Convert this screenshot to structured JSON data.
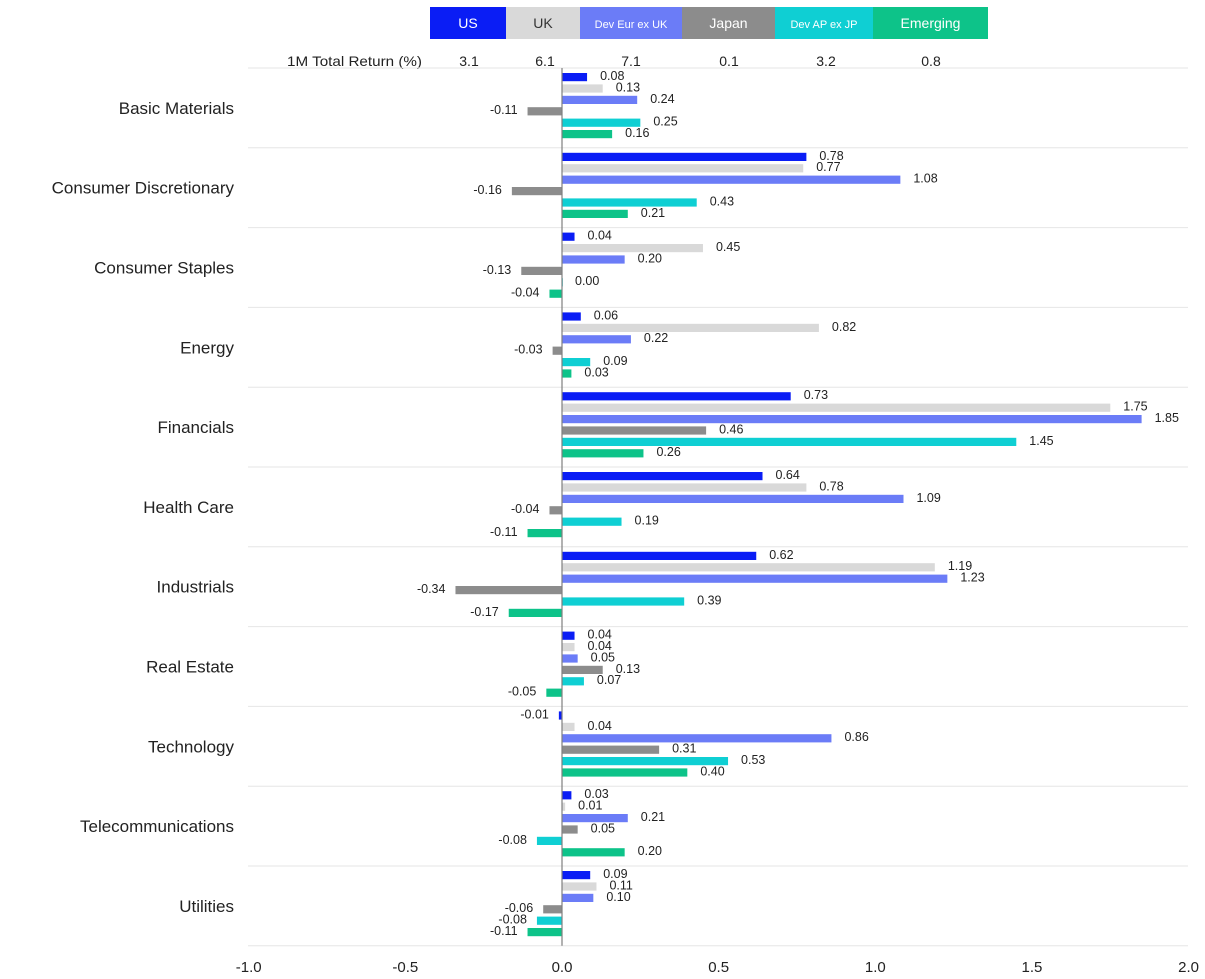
{
  "chart_data": {
    "type": "bar",
    "orientation": "horizontal",
    "header_label": "1M Total Return (%)",
    "series": [
      {
        "name": "US",
        "color": "#0a1df5",
        "total_return": "3.1",
        "values": [
          0.08,
          0.78,
          0.04,
          0.06,
          0.73,
          0.64,
          0.62,
          0.04,
          -0.01,
          0.03,
          0.09
        ]
      },
      {
        "name": "UK",
        "color": "#d9d9d9",
        "total_return": "6.1",
        "values": [
          0.13,
          0.77,
          0.45,
          0.82,
          1.75,
          0.78,
          1.19,
          0.04,
          0.04,
          0.01,
          0.11
        ]
      },
      {
        "name": "Dev Eur ex UK",
        "color": "#6b7cf7",
        "total_return": "7.1",
        "values": [
          0.24,
          1.08,
          0.2,
          0.22,
          1.85,
          1.09,
          1.23,
          0.05,
          0.86,
          0.21,
          0.1
        ]
      },
      {
        "name": "Japan",
        "color": "#8c8c8c",
        "total_return": "0.1",
        "values": [
          -0.11,
          -0.16,
          -0.13,
          -0.03,
          0.46,
          -0.04,
          -0.34,
          0.13,
          0.31,
          0.05,
          -0.06
        ]
      },
      {
        "name": "Dev AP ex JP",
        "color": "#0fcfd3",
        "total_return": "3.2",
        "values": [
          0.25,
          0.43,
          0.0,
          0.09,
          1.45,
          0.19,
          0.39,
          0.07,
          0.53,
          -0.08,
          -0.08
        ]
      },
      {
        "name": "Emerging",
        "color": "#0dc389",
        "total_return": "0.8",
        "values": [
          0.16,
          0.21,
          -0.04,
          0.03,
          0.26,
          -0.11,
          -0.17,
          -0.05,
          0.4,
          0.2,
          -0.11
        ]
      }
    ],
    "categories": [
      "Basic Materials",
      "Consumer Discretionary",
      "Consumer Staples",
      "Energy",
      "Financials",
      "Health Care",
      "Industrials",
      "Real Estate",
      "Technology",
      "Telecommunications",
      "Utilities"
    ],
    "value_labels": [
      [
        "0.08",
        "0.13",
        "0.24",
        "-0.11",
        "0.25",
        "0.16"
      ],
      [
        "0.78",
        "0.77",
        "1.08",
        "-0.16",
        "0.43",
        "0.21"
      ],
      [
        "0.04",
        "0.45",
        "0.20",
        "-0.13",
        "0.00",
        "-0.04"
      ],
      [
        "0.06",
        "0.82",
        "0.22",
        "-0.03",
        "0.09",
        "0.03"
      ],
      [
        "0.73",
        "1.75",
        "1.85",
        "0.46",
        "1.45",
        "0.26"
      ],
      [
        "0.64",
        "0.78",
        "1.09",
        "-0.04",
        "0.19",
        "-0.11"
      ],
      [
        "0.62",
        "1.19",
        "1.23",
        "-0.34",
        "0.39",
        "-0.17"
      ],
      [
        "0.04",
        "0.04",
        "0.05",
        "0.13",
        "0.07",
        "-0.05"
      ],
      [
        "-0.01",
        "0.04",
        "0.86",
        "0.31",
        "0.53",
        "0.40"
      ],
      [
        "0.03",
        "0.01",
        "0.21",
        "0.05",
        "-0.08",
        "0.20"
      ],
      [
        "0.09",
        "0.11",
        "0.10",
        "-0.06",
        "-0.08",
        "-0.11"
      ]
    ],
    "x_ticks": [
      "-1.0",
      "-0.5",
      "0.0",
      "0.5",
      "1.0",
      "1.5",
      "2.0"
    ],
    "xlim": [
      -1.0,
      2.0
    ],
    "legend_placement": "top",
    "grid": "horizontal separators between categories"
  }
}
